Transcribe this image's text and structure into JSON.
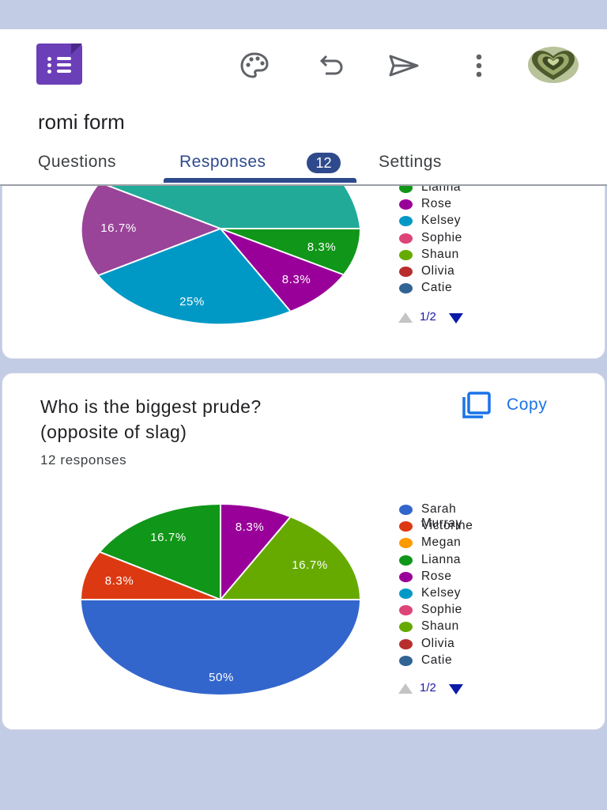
{
  "header": {
    "form_title": "romi form",
    "icons": [
      "forms-logo-icon",
      "palette-icon",
      "undo-icon",
      "send-icon",
      "more-vert-icon",
      "avatar"
    ]
  },
  "tabs": [
    {
      "label": "Questions"
    },
    {
      "label": "Responses",
      "badge": "12",
      "active": true
    },
    {
      "label": "Settings"
    }
  ],
  "question1": {
    "legend_visible": [
      "Lianna",
      "Rose",
      "Kelsey",
      "Sophie",
      "Shaun",
      "Olivia",
      "Catie"
    ],
    "legend_colors": [
      "#109618",
      "#990099",
      "#0099c6",
      "#dd4477",
      "#66aa00",
      "#b82e2e",
      "#316395"
    ],
    "pager": "1/2"
  },
  "question2": {
    "title_line1": "Who is the biggest prude?",
    "title_line2": "(opposite of slag)",
    "count": "12 responses",
    "copy_label": "Copy",
    "legend": [
      "Sarah Murray",
      "Victorine",
      "Megan",
      "Lianna",
      "Rose",
      "Kelsey",
      "Sophie",
      "Shaun",
      "Olivia",
      "Catie"
    ],
    "legend_colors": [
      "#3366cc",
      "#dc3912",
      "#ff9900",
      "#109618",
      "#990099",
      "#0099c6",
      "#dd4477",
      "#66aa00",
      "#b82e2e",
      "#316395"
    ],
    "pager": "1/2"
  },
  "chart_data": [
    {
      "type": "pie",
      "visible_portion": "partial (top cut off by header)",
      "slices": [
        {
          "label": "Lianna",
          "value": 8.3,
          "color": "#109618"
        },
        {
          "label": "Rose",
          "value": 8.3,
          "color": "#990099"
        },
        {
          "label": "Kelsey",
          "value": 25,
          "color": "#0099c6"
        },
        {
          "label": "(purple-violet series)",
          "value": 16.7,
          "color": "#994499"
        },
        {
          "label": "(teal series)",
          "value": null,
          "color": "#22aa99"
        }
      ],
      "slice_labels": [
        "8.3%",
        "8.3%",
        "25%",
        "16.7%"
      ]
    },
    {
      "type": "pie",
      "slices": [
        {
          "label": "Sarah Murray",
          "value": 50,
          "color": "#3366cc"
        },
        {
          "label": "Victorine",
          "value": 8.3,
          "color": "#dc3912"
        },
        {
          "label": "Lianna",
          "value": 16.7,
          "color": "#109618"
        },
        {
          "label": "Rose",
          "value": 8.3,
          "color": "#990099"
        },
        {
          "label": "Shaun",
          "value": 16.7,
          "color": "#66aa00"
        }
      ],
      "slice_labels": [
        "50%",
        "8.3%",
        "16.7%",
        "8.3%",
        "16.7%"
      ]
    }
  ]
}
